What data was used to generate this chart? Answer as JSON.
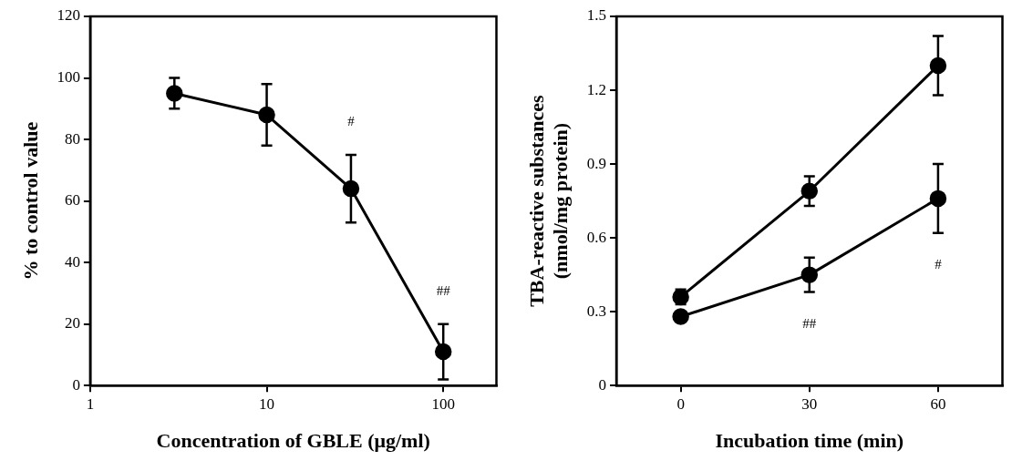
{
  "chart_data": [
    {
      "type": "line",
      "xlabel": "Concentration of GBLE (μg/ml)",
      "ylabel": "% to control value",
      "log": "x",
      "xlim": [
        1,
        200
      ],
      "xticks": [
        1,
        10,
        100
      ],
      "ylim": [
        0,
        120
      ],
      "yticks": [
        0,
        20,
        40,
        60,
        80,
        100,
        120
      ],
      "x": [
        3,
        10,
        30,
        100
      ],
      "grid": false,
      "legend": false,
      "marker": "circle",
      "line_style": "solid",
      "series": [
        {
          "color": "#000000",
          "values": [
            95,
            88,
            64,
            11
          ],
          "errors": [
            5,
            10,
            11,
            9
          ]
        }
      ],
      "annotations": [
        {
          "text": "#",
          "x": 30,
          "y": 75
        },
        {
          "text": "##",
          "x": 100,
          "y": 20
        }
      ]
    },
    {
      "type": "line",
      "xlabel": "Incubation time (min)",
      "ylabel": "TBA-reactive substances\n(nmol/mg protein)",
      "xlim": [
        -15,
        75
      ],
      "xticks": [
        0,
        30,
        60
      ],
      "ylim": [
        0,
        1.5
      ],
      "yticks": [
        0,
        0.3,
        0.6,
        0.9,
        1.2,
        1.5
      ],
      "x": [
        0,
        30,
        60
      ],
      "grid": false,
      "legend": false,
      "marker": "circle",
      "line_style": "solid",
      "series": [
        {
          "color": "#000000",
          "values": [
            0.36,
            0.79,
            1.3
          ],
          "errors": [
            0.03,
            0.06,
            0.12
          ]
        },
        {
          "color": "#000000",
          "values": [
            0.28,
            0.45,
            0.76
          ],
          "errors": [
            0.02,
            0.07,
            0.14
          ]
        }
      ],
      "annotations": [
        {
          "text": "##",
          "x": 30,
          "y": 0.38
        },
        {
          "text": "#",
          "x": 60,
          "y": 0.62
        }
      ]
    }
  ]
}
